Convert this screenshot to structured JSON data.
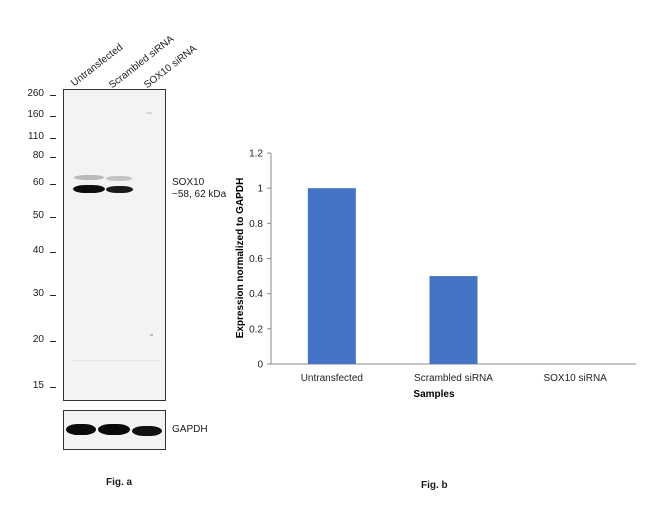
{
  "western_blot": {
    "lanes": [
      "Untransfected",
      "Scrambled siRNA",
      "SOX10 siRNA"
    ],
    "mw_markers": [
      "260",
      "160",
      "110",
      "80",
      "60",
      "50",
      "40",
      "30",
      "20",
      "15"
    ],
    "target_label_line1": "SOX10",
    "target_label_line2": "~58, 62 kDa",
    "loading_control_label": "GAPDH",
    "caption": "Fig. a"
  },
  "chart_data": {
    "type": "bar",
    "categories": [
      "Untransfected",
      "Scrambled siRNA",
      "SOX10 siRNA"
    ],
    "values": [
      1,
      0.5,
      0
    ],
    "xlabel": "Samples",
    "ylabel": "Expression normalized to GAPDH",
    "ylim": [
      0,
      1.2
    ],
    "yticks": [
      "0",
      "0.2",
      "0.4",
      "0.6",
      "0.8",
      "1",
      "1.2"
    ],
    "bar_color": "#4472C4",
    "grid": false,
    "caption": "Fig. b"
  }
}
